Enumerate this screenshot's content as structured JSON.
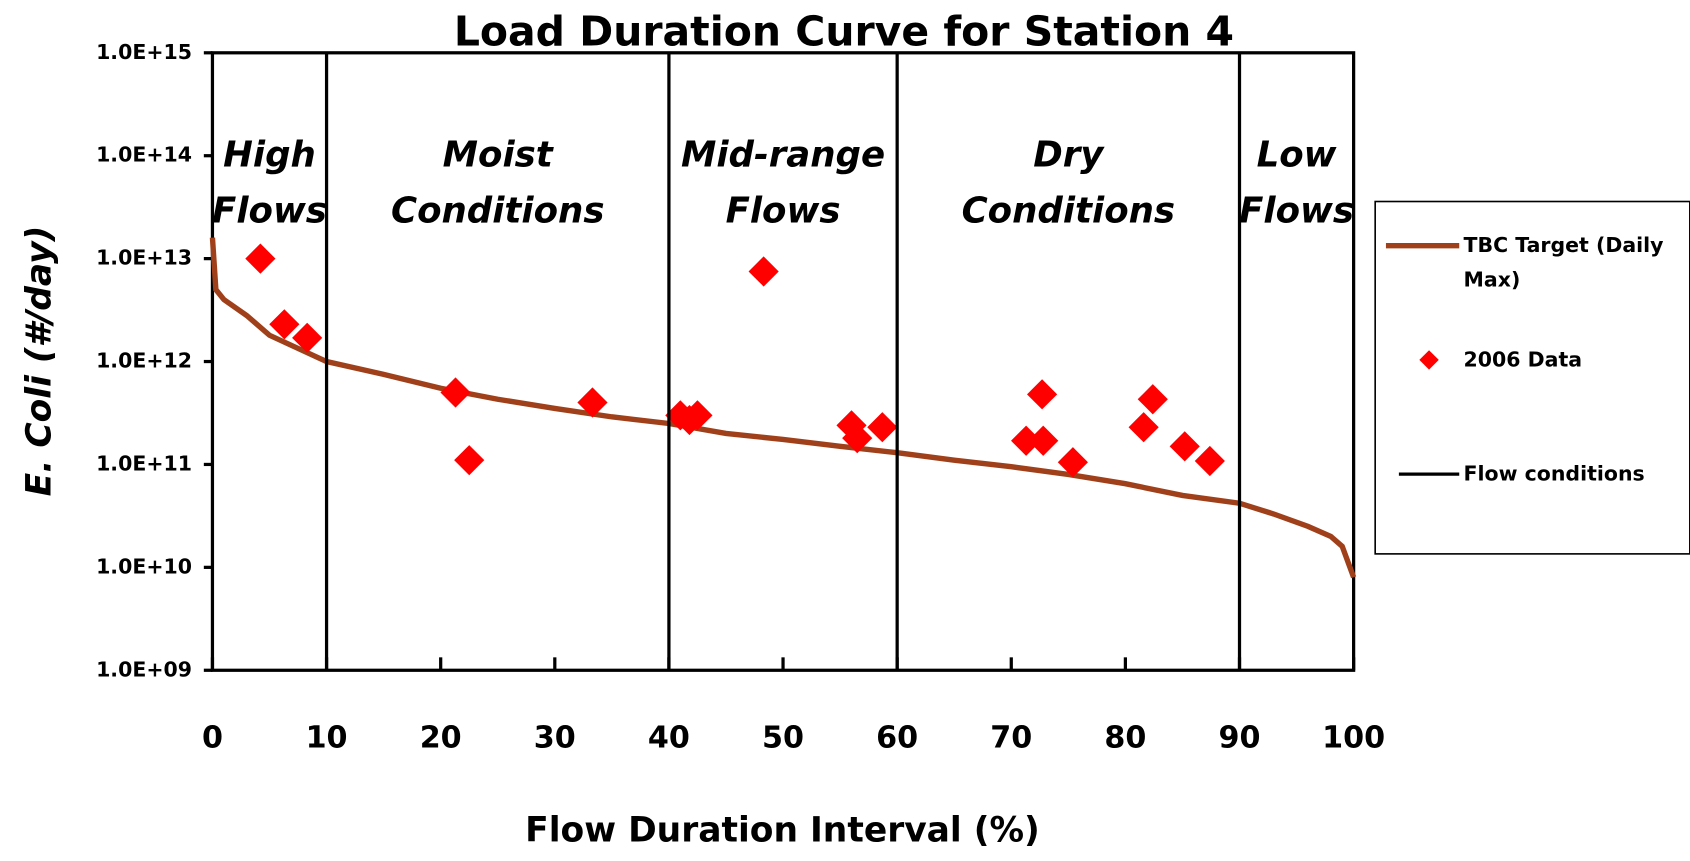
{
  "chart_data": {
    "type": "line_scatter",
    "title": "Load Duration Curve for Station 4",
    "xlabel": "Flow Duration Interval (%)",
    "ylabel": "E. Coli (#/day)",
    "xlim": [
      0,
      100
    ],
    "xticks": [
      0,
      10,
      20,
      30,
      40,
      50,
      60,
      70,
      80,
      90,
      100
    ],
    "ylim": [
      1000000000.0,
      1000000000000000.0
    ],
    "log_y": true,
    "yticks": [
      {
        "value": 1000000000.0,
        "label": "1.0E+09"
      },
      {
        "value": 10000000000.0,
        "label": "1.0E+10"
      },
      {
        "value": 100000000000.0,
        "label": "1.0E+11"
      },
      {
        "value": 1000000000000.0,
        "label": "1.0E+12"
      },
      {
        "value": 10000000000000.0,
        "label": "1.0E+13"
      },
      {
        "value": 100000000000000.0,
        "label": "1.0E+14"
      },
      {
        "value": 1000000000000000.0,
        "label": "1.0E+15"
      }
    ],
    "legend": "right",
    "series": [
      {
        "name": "TBC Target (Daily Max)",
        "type": "line",
        "color": "#a0401a",
        "x": [
          0,
          0.3,
          1,
          3,
          5,
          10,
          15,
          20,
          25,
          30,
          35,
          40,
          45,
          50,
          55,
          60,
          65,
          70,
          75,
          80,
          85,
          90,
          93,
          96,
          98,
          99,
          100
        ],
        "values": [
          16000000000000.0,
          5000000000000.0,
          4000000000000.0,
          2800000000000.0,
          1800000000000.0,
          1000000000000.0,
          750000000000.0,
          550000000000.0,
          430000000000.0,
          350000000000.0,
          290000000000.0,
          250000000000.0,
          200000000000.0,
          175000000000.0,
          150000000000.0,
          130000000000.0,
          110000000000.0,
          95000000000.0,
          80000000000.0,
          65000000000.0,
          50000000000.0,
          42000000000.0,
          33000000000.0,
          25000000000.0,
          20000000000.0,
          16000000000.0,
          8000000000.0
        ]
      },
      {
        "name": "2006 Data",
        "type": "scatter",
        "color": "#ff0000",
        "x": [
          4.2,
          6.3,
          8.3,
          21.3,
          22.5,
          33.3,
          41,
          41.8,
          42.5,
          48.3,
          56,
          56.5,
          58.7,
          71.3,
          72.7,
          72.8,
          75.4,
          81.6,
          82.4,
          85.2,
          87.4
        ],
        "values": [
          10000000000000.0,
          2300000000000.0,
          1700000000000.0,
          500000000000.0,
          110000000000.0,
          400000000000.0,
          300000000000.0,
          270000000000.0,
          300000000000.0,
          7500000000000.0,
          240000000000.0,
          180000000000.0,
          230000000000.0,
          170000000000.0,
          480000000000.0,
          170000000000.0,
          105000000000.0,
          230000000000.0,
          430000000000.0,
          150000000000.0,
          108000000000.0
        ]
      },
      {
        "name": "Flow conditions",
        "type": "vline",
        "color": "#000000",
        "x": [
          10,
          40,
          60,
          90
        ]
      }
    ],
    "regions": [
      [
        "High",
        "Flows"
      ],
      [
        "Moist",
        "Conditions"
      ],
      [
        "Mid-range",
        "Flows"
      ],
      [
        "Dry",
        "Conditions"
      ],
      [
        "Low",
        "Flows"
      ]
    ]
  }
}
